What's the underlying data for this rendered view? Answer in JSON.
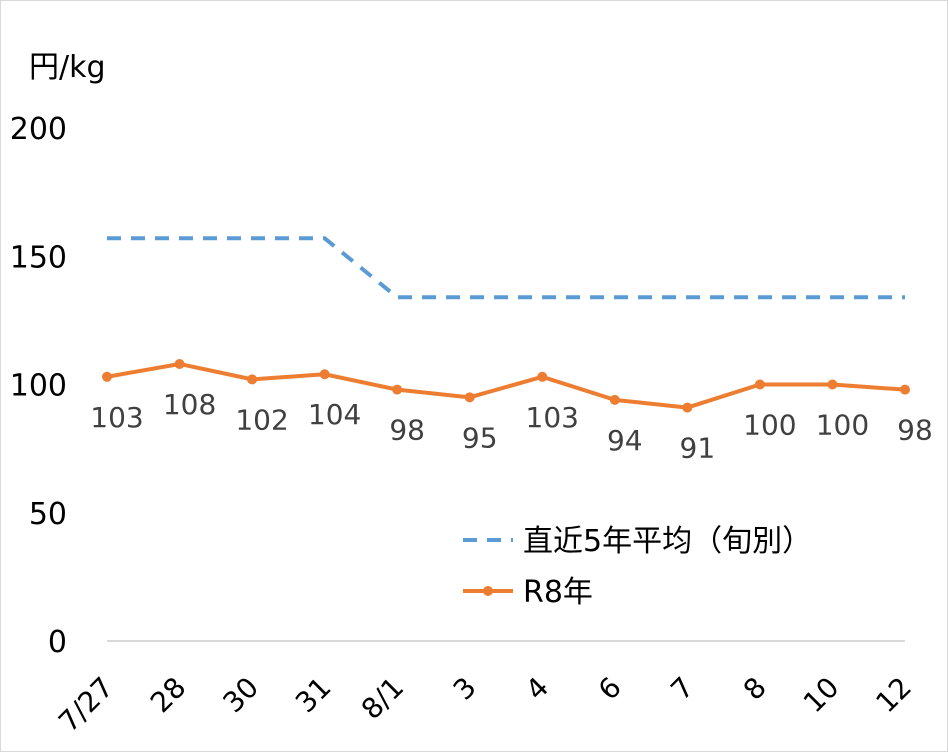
{
  "chart_data": {
    "type": "line",
    "ylabel": "円/kg",
    "ylim": [
      0,
      200
    ],
    "yticks": [
      0,
      50,
      100,
      150,
      200
    ],
    "grid": false,
    "legend_position": "bottom-right",
    "categories": [
      "7/27",
      "28",
      "30",
      "31",
      "8/1",
      "3",
      "4",
      "6",
      "7",
      "8",
      "10",
      "12"
    ],
    "series": [
      {
        "name": "直近5年平均（旬別）",
        "style": "dashed",
        "color": "#5B9BD5",
        "values": [
          157,
          157,
          157,
          157,
          134,
          134,
          134,
          134,
          134,
          134,
          134,
          134
        ]
      },
      {
        "name": "R8年",
        "style": "solid-marker",
        "color": "#ED7D31",
        "values": [
          103,
          108,
          102,
          104,
          98,
          95,
          103,
          94,
          91,
          100,
          100,
          98
        ],
        "data_labels": [
          "103",
          "108",
          "102",
          "104",
          "98",
          "95",
          "103",
          "94",
          "91",
          "100",
          "100",
          "98"
        ]
      }
    ]
  }
}
